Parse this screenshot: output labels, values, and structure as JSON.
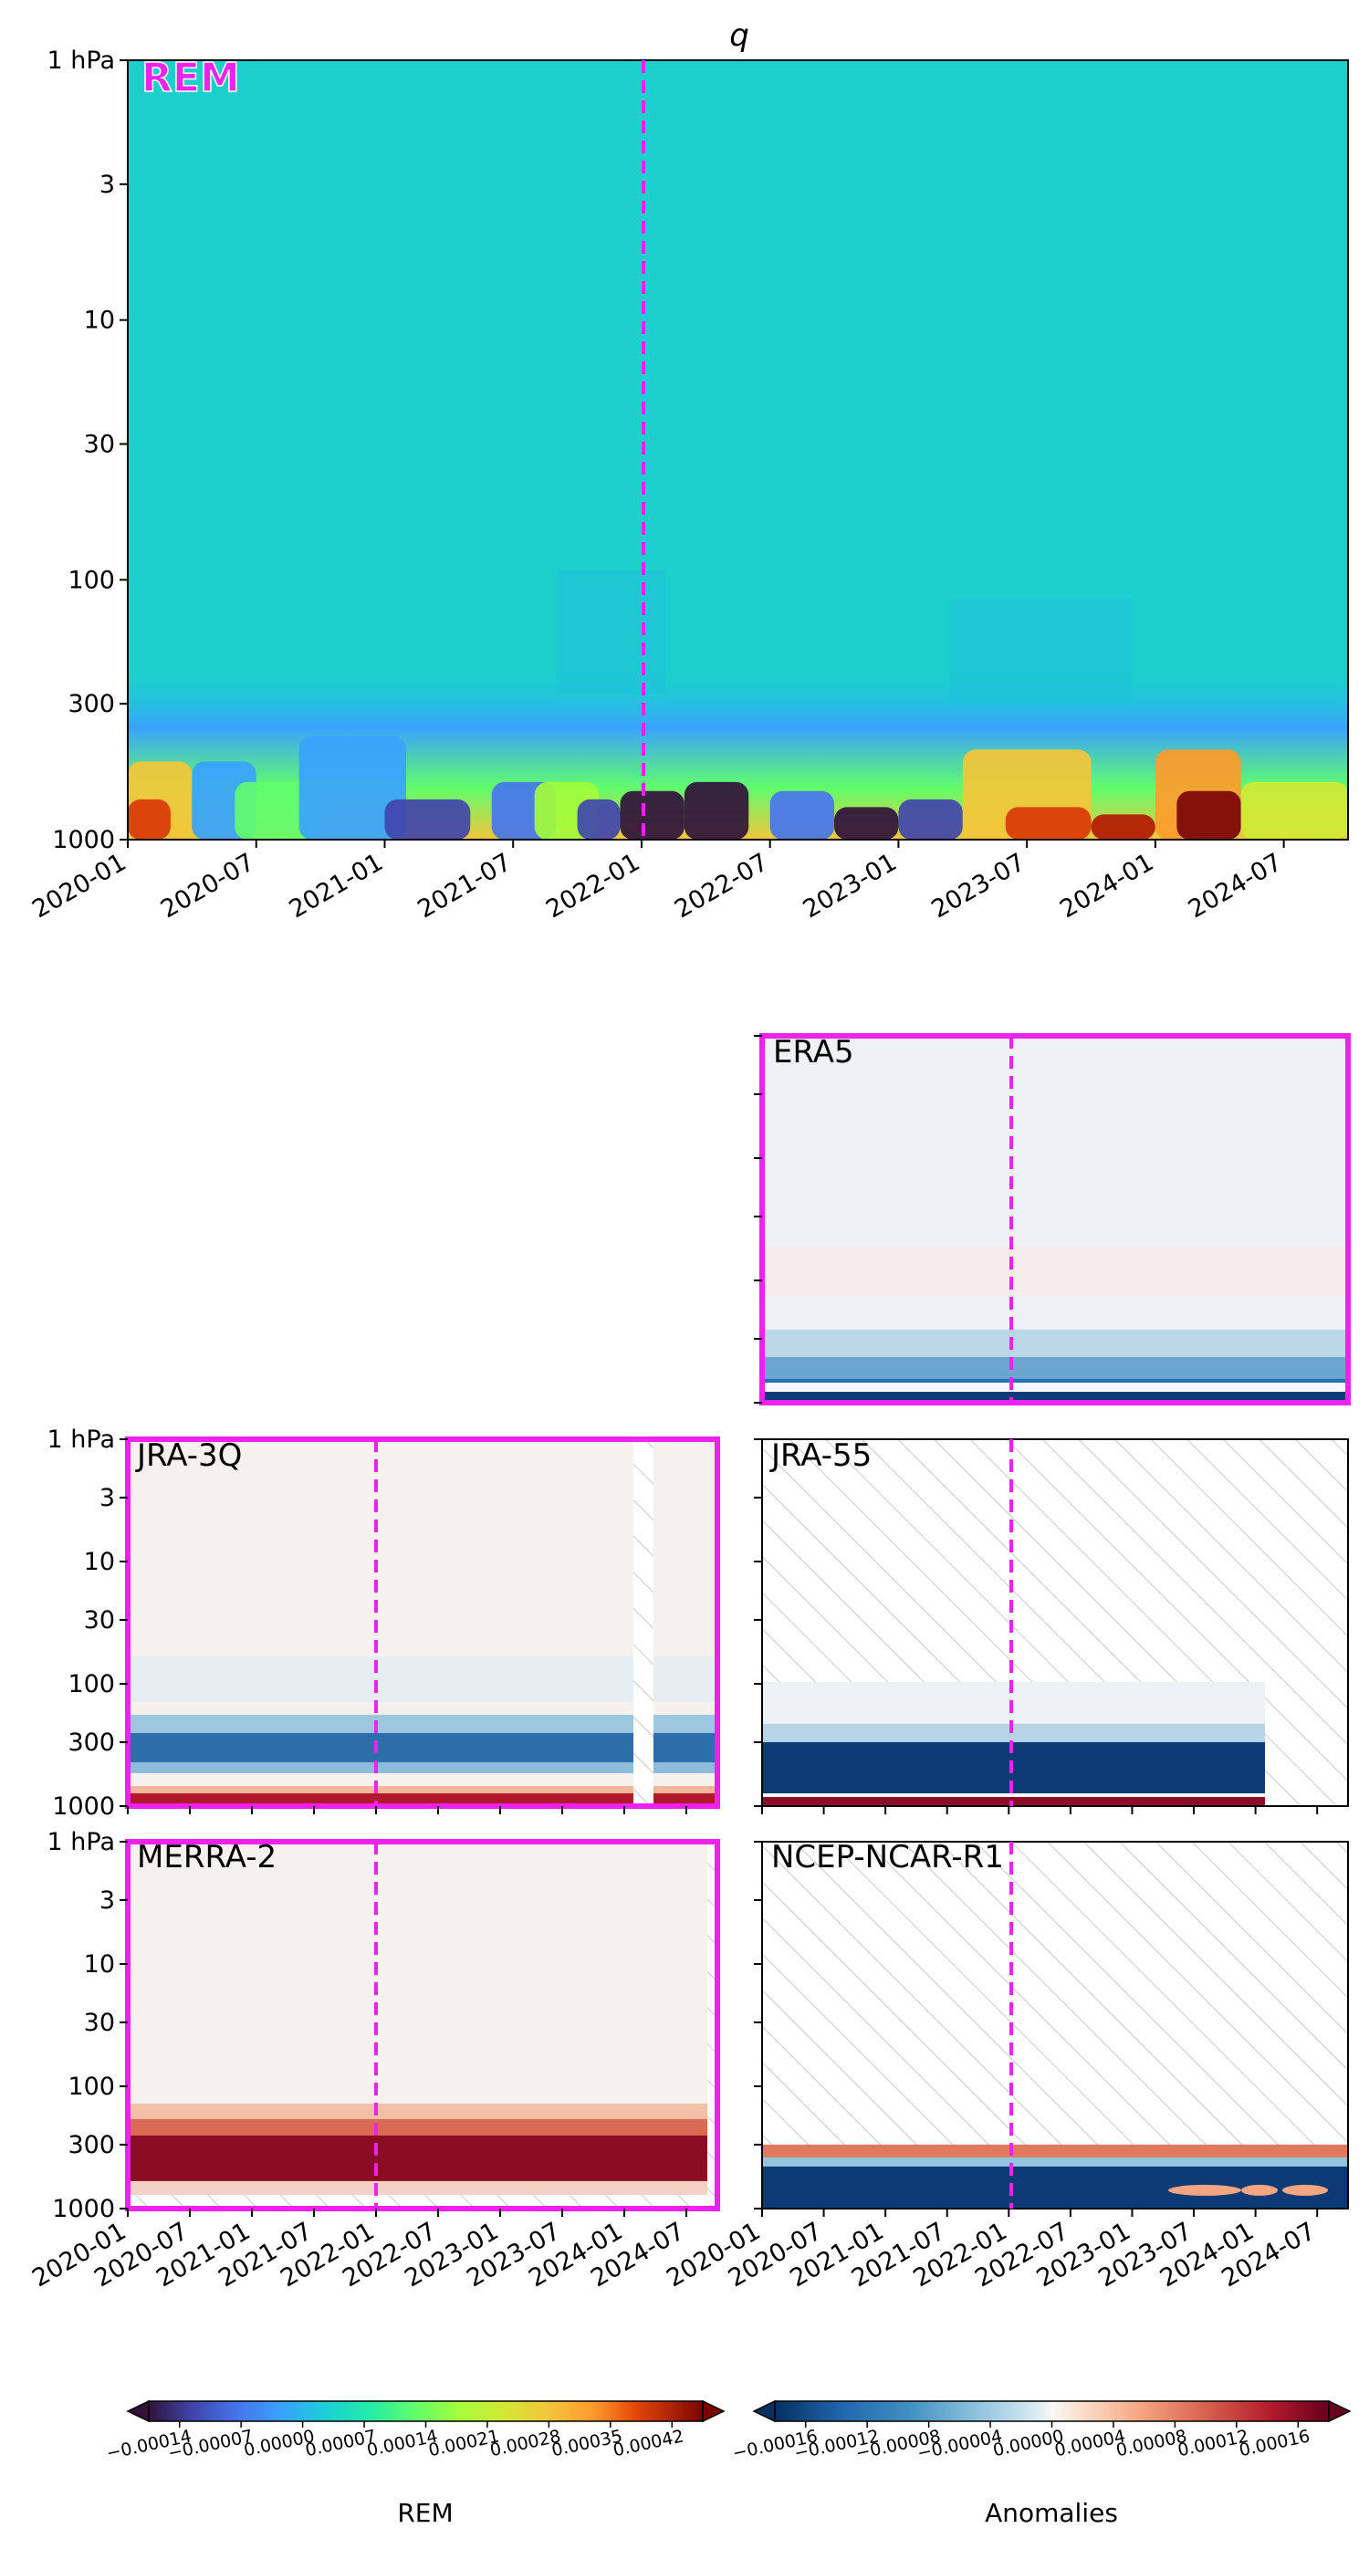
{
  "figure": {
    "title": "q",
    "highlight_color": "#ee22ee",
    "hatch_color": "#c8c8c8"
  },
  "chart_data": [
    {
      "type": "heatmap",
      "panel": "REM",
      "label": "REM",
      "title": "q",
      "y_scale": "log",
      "y_axis": {
        "ticks": [
          "1 hPa",
          "3",
          "10",
          "30",
          "100",
          "300",
          "1000"
        ],
        "values": [
          1,
          3,
          10,
          30,
          100,
          300,
          1000
        ],
        "range": [
          1000,
          1
        ]
      },
      "x_axis": {
        "ticks": [
          "2020-01",
          "2020-07",
          "2021-01",
          "2021-07",
          "2022-01",
          "2022-07",
          "2023-01",
          "2023-07",
          "2024-01",
          "2024-07"
        ],
        "range": [
          "2020-01",
          "2024-10"
        ]
      },
      "vertical_marker": "2021-12",
      "highlighted": false,
      "colormap": "turbo",
      "description_values": {
        "upper_levels": 5e-05,
        "lower_levels_range": [
          -0.00014,
          0.00042
        ]
      }
    },
    {
      "type": "heatmap",
      "panel": "ERA5",
      "label": "ERA5",
      "colormap": "RdBu_r anomalies",
      "highlighted": true,
      "vertical_marker": "2021-12",
      "hatched": false
    },
    {
      "type": "heatmap",
      "panel": "JRA-3Q",
      "label": "JRA-3Q",
      "colormap": "RdBu_r anomalies",
      "highlighted": true,
      "vertical_marker": "2021-12",
      "missing_period": [
        "2024-01",
        "2024-03"
      ],
      "y_axis": {
        "ticks": [
          "1 hPa",
          "3",
          "10",
          "30",
          "100",
          "300",
          "1000"
        ]
      }
    },
    {
      "type": "heatmap",
      "panel": "JRA-55",
      "label": "JRA-55",
      "colormap": "RdBu_r anomalies",
      "highlighted": false,
      "vertical_marker": "2021-12",
      "data_extent": {
        "levels": [
          100,
          1000
        ],
        "end": "2024-01"
      }
    },
    {
      "type": "heatmap",
      "panel": "MERRA-2",
      "label": "MERRA-2",
      "colormap": "RdBu_r anomalies",
      "highlighted": true,
      "vertical_marker": "2021-12",
      "y_axis": {
        "ticks": [
          "1 hPa",
          "3",
          "10",
          "30",
          "100",
          "300",
          "1000"
        ]
      },
      "x_axis": {
        "ticks": [
          "2020-01",
          "2020-07",
          "2021-01",
          "2021-07",
          "2022-01",
          "2022-07",
          "2023-01",
          "2023-07",
          "2024-01",
          "2024-07"
        ]
      }
    },
    {
      "type": "heatmap",
      "panel": "NCEP-NCAR-R1",
      "label": "NCEP-NCAR-R1",
      "colormap": "RdBu_r anomalies",
      "highlighted": false,
      "vertical_marker": "2021-12",
      "data_extent": {
        "levels": [
          300,
          1000
        ]
      },
      "x_axis": {
        "ticks": [
          "2020-01",
          "2020-07",
          "2021-01",
          "2021-07",
          "2022-01",
          "2022-07",
          "2023-01",
          "2023-07",
          "2024-01",
          "2024-07"
        ]
      }
    }
  ],
  "colorbars": {
    "rem": {
      "label": "REM",
      "ticks": [
        "−0.00014",
        "−0.00007",
        "0.00000",
        "0.00007",
        "0.00014",
        "0.00021",
        "0.00028",
        "0.00035",
        "0.00042"
      ],
      "colors": [
        "#30123b",
        "#4145ab",
        "#4675ed",
        "#39a2fc",
        "#1bcfd4",
        "#24eca6",
        "#61fc6c",
        "#a4fc3b",
        "#d1e834",
        "#f3c63a",
        "#fe9b2d",
        "#f36315",
        "#d93806",
        "#b11901",
        "#7a0403"
      ]
    },
    "anom": {
      "label": "Anomalies",
      "ticks": [
        "−0.00016",
        "−0.00012",
        "−0.00008",
        "−0.00004",
        "0.00000",
        "0.00004",
        "0.00008",
        "0.00012",
        "0.00016"
      ],
      "colors": [
        "#053061",
        "#2166ac",
        "#4393c3",
        "#92c5de",
        "#d1e5f0",
        "#f7f7f7",
        "#fddbc7",
        "#f4a582",
        "#d6604d",
        "#b2182b",
        "#67001f"
      ]
    }
  }
}
